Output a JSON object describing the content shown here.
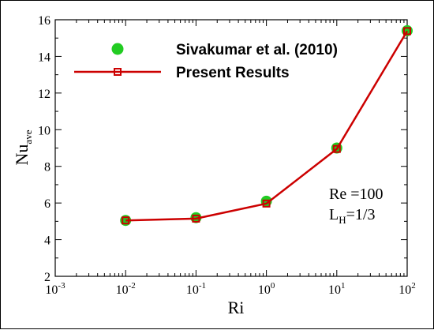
{
  "chart_data": {
    "type": "line",
    "title": "",
    "xlabel": "Ri",
    "ylabel": {
      "main": "Nu",
      "sub": "ave"
    },
    "x_scale": "log",
    "xlim": [
      0.001,
      100
    ],
    "ylim": [
      2,
      16
    ],
    "x_ticks": [
      {
        "value": 0.001,
        "base": "10",
        "exp": "-3"
      },
      {
        "value": 0.01,
        "base": "10",
        "exp": "-2"
      },
      {
        "value": 0.1,
        "base": "10",
        "exp": "-1"
      },
      {
        "value": 1,
        "base": "10",
        "exp": "0"
      },
      {
        "value": 10,
        "base": "10",
        "exp": "1"
      },
      {
        "value": 100,
        "base": "10",
        "exp": "2"
      }
    ],
    "y_ticks": [
      2,
      4,
      6,
      8,
      10,
      12,
      14,
      16
    ],
    "grid": false,
    "legend": "top",
    "series": [
      {
        "name": "Sivakumar et al. (2010)",
        "style": "markers",
        "marker": "circle",
        "color": "#22cc22",
        "x": [
          0.01,
          0.1,
          1,
          10,
          100
        ],
        "y": [
          5.05,
          5.2,
          6.1,
          9.0,
          15.4
        ]
      },
      {
        "name": "Present Results",
        "style": "line+markers",
        "marker": "square",
        "color": "#cc0000",
        "x": [
          0.01,
          0.1,
          1,
          10,
          100
        ],
        "y": [
          5.05,
          5.15,
          5.97,
          8.95,
          15.38
        ]
      }
    ],
    "annotations": [
      {
        "main": "Re =100",
        "sub": ""
      },
      {
        "main": "L",
        "sub": "H",
        "rest": "=1/3"
      }
    ]
  }
}
